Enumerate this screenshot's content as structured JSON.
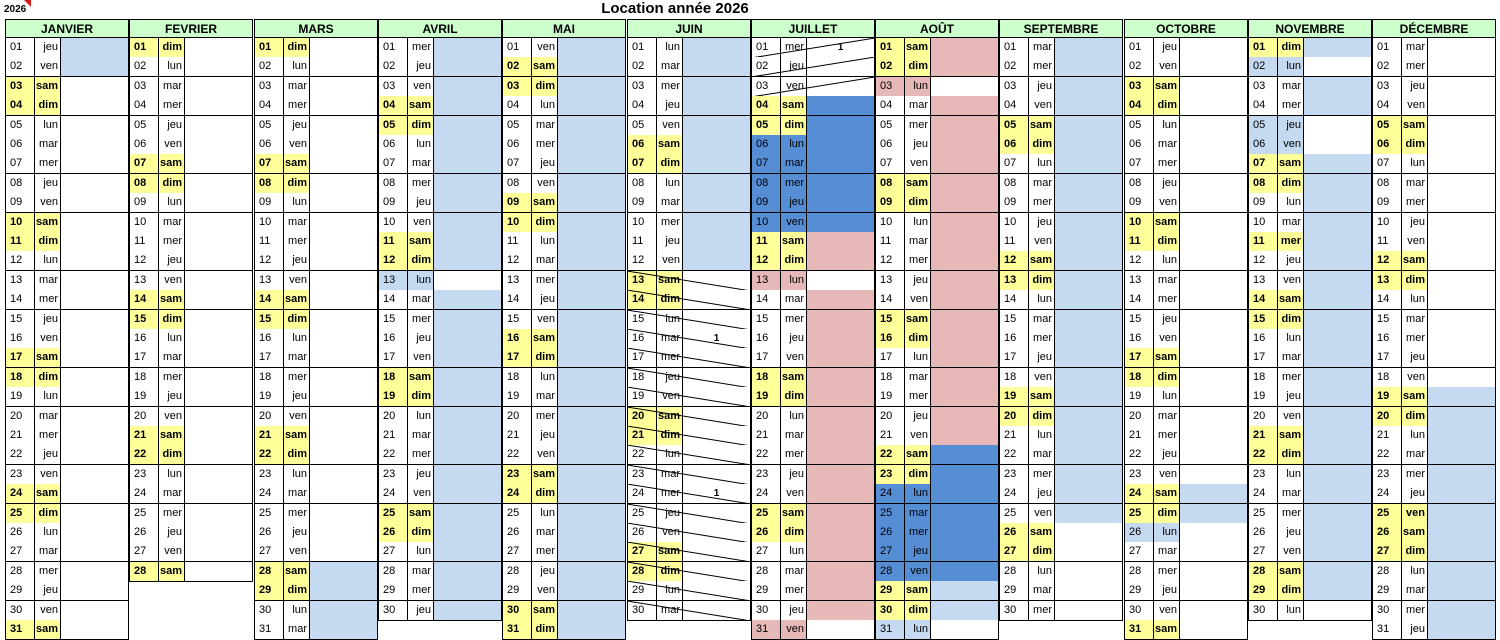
{
  "year_label": "2026",
  "title": "Location année 2026",
  "months": [
    {
      "name": "JANVIER",
      "start": "jeu",
      "days": 31,
      "status": {
        "1": "l",
        "2": "l"
      }
    },
    {
      "name": "FEVRIER",
      "start": "dim",
      "days": 28,
      "status": {}
    },
    {
      "name": "MARS",
      "start": "dim",
      "days": 31,
      "status": {
        "28": "l",
        "29": "l",
        "30": "l",
        "31": "l"
      }
    },
    {
      "name": "AVRIL",
      "start": "mer",
      "days": 30,
      "status": {
        "1": "l",
        "2": "l",
        "3": "l",
        "4": "l",
        "5": "l",
        "6": "l",
        "7": "l",
        "8": "l",
        "9": "l",
        "10": "l",
        "11": "l",
        "12": "l",
        "13": "lv",
        "14": "l",
        "15": "l",
        "16": "l",
        "17": "l",
        "18": "l",
        "19": "l",
        "20": "l",
        "21": "l",
        "22": "l",
        "23": "l",
        "24": "l",
        "25": "l",
        "26": "l",
        "27": "l",
        "28": "l",
        "29": "l",
        "30": "l"
      }
    },
    {
      "name": "MAI",
      "start": "ven",
      "days": 31,
      "status": {
        "1": "l",
        "2": "l",
        "3": "l",
        "4": "l",
        "5": "l",
        "6": "l",
        "7": "l",
        "8": "l",
        "9": "l",
        "10": "l",
        "11": "l",
        "12": "l",
        "13": "l",
        "14": "l",
        "15": "l",
        "16": "l",
        "17": "l",
        "18": "l",
        "19": "l",
        "20": "l",
        "21": "l",
        "22": "l",
        "23": "l",
        "24": "l",
        "25": "l",
        "26": "l",
        "27": "l",
        "28": "l",
        "29": "l",
        "30": "l",
        "31": "l"
      }
    },
    {
      "name": "JUIN",
      "start": "lun",
      "days": 30,
      "status": {
        "1": "l",
        "2": "l",
        "3": "l",
        "4": "l",
        "5": "l",
        "6": "l",
        "7": "l",
        "8": "l",
        "9": "l",
        "10": "l",
        "11": "l",
        "12": "l",
        "13": "x",
        "14": "x",
        "15": "x",
        "16": "x",
        "17": "x",
        "18": "x",
        "19": "x",
        "20": "x",
        "21": "x",
        "22": "x",
        "23": "x",
        "24": "x",
        "25": "x",
        "26": "x",
        "27": "x",
        "28": "x",
        "29": "x",
        "30": "x"
      },
      "marks": {
        "16": "1",
        "24": "1"
      }
    },
    {
      "name": "JUILLET",
      "start": "mer",
      "days": 31,
      "status": {
        "1": "x",
        "2": "x",
        "3": "x",
        "4": "b",
        "5": "b",
        "6": "bv",
        "7": "bv",
        "8": "bv",
        "9": "bv",
        "10": "bv",
        "11": "r",
        "12": "r",
        "13": "rv",
        "14": "r",
        "15": "r",
        "16": "r",
        "17": "r",
        "18": "r",
        "19": "r",
        "20": "r",
        "21": "r",
        "22": "r",
        "23": "r",
        "24": "r",
        "25": "r",
        "26": "r",
        "27": "r",
        "28": "r",
        "29": "r",
        "30": "r",
        "31": "rv"
      },
      "marks": {
        "1": "1"
      }
    },
    {
      "name": "AOÛT",
      "start": "sam",
      "days": 31,
      "status": {
        "1": "r",
        "2": "r",
        "3": "rv",
        "4": "r",
        "5": "r",
        "6": "r",
        "7": "r",
        "8": "r",
        "9": "r",
        "10": "r",
        "11": "r",
        "12": "r",
        "13": "r",
        "14": "r",
        "15": "r",
        "16": "r",
        "17": "r",
        "18": "r",
        "19": "r",
        "20": "r",
        "21": "r",
        "22": "b",
        "23": "b",
        "24": "bv",
        "25": "bv",
        "26": "bv",
        "27": "bv",
        "28": "bv",
        "29": "l",
        "30": "l",
        "31": "lv"
      }
    },
    {
      "name": "SEPTEMBRE",
      "start": "mar",
      "days": 30,
      "status": {
        "1": "l",
        "2": "l",
        "3": "l",
        "4": "l",
        "5": "l",
        "6": "l",
        "7": "l",
        "8": "l",
        "9": "l",
        "10": "l",
        "11": "l",
        "12": "l",
        "13": "l",
        "14": "l",
        "15": "l",
        "16": "l",
        "17": "l",
        "18": "l",
        "19": "l",
        "20": "l",
        "21": "l",
        "22": "l",
        "23": "l",
        "24": "l",
        "25": "l"
      }
    },
    {
      "name": "OCTOBRE",
      "start": "jeu",
      "days": 31,
      "status": {
        "24": "l",
        "25": "l",
        "26": "lv"
      }
    },
    {
      "name": "NOVEMBRE",
      "start": "dim",
      "days": 30,
      "status": {
        "1": "l",
        "2": "lv",
        "3": "l",
        "4": "l",
        "5": "lv",
        "6": "lv",
        "7": "l",
        "8": "l",
        "9": "l",
        "10": "l",
        "11": "l",
        "12": "l",
        "13": "l",
        "14": "l",
        "15": "l",
        "16": "l",
        "17": "l",
        "18": "l",
        "19": "l",
        "20": "l",
        "21": "l",
        "22": "l",
        "23": "l",
        "24": "l",
        "25": "l",
        "26": "l",
        "27": "l",
        "28": "l",
        "29": "l"
      },
      "weekend_extra": [
        "11"
      ]
    },
    {
      "name": "DÉCEMBRE",
      "start": "mar",
      "days": 31,
      "status": {
        "19": "l",
        "20": "l",
        "21": "l",
        "22": "l",
        "23": "l",
        "24": "l",
        "25": "l",
        "26": "l",
        "27": "l",
        "28": "l",
        "29": "l",
        "30": "l",
        "31": "l"
      },
      "weekend_extra": [
        "25"
      ]
    }
  ],
  "weekdays": [
    "lun",
    "mar",
    "mer",
    "jeu",
    "ven",
    "sam",
    "dim"
  ],
  "colors": {
    "header": "#ccffcc",
    "weekend": "#ffff99",
    "light_blue": "#c5d9f1",
    "pink": "#e6b8b7",
    "blue": "#558ed5"
  }
}
